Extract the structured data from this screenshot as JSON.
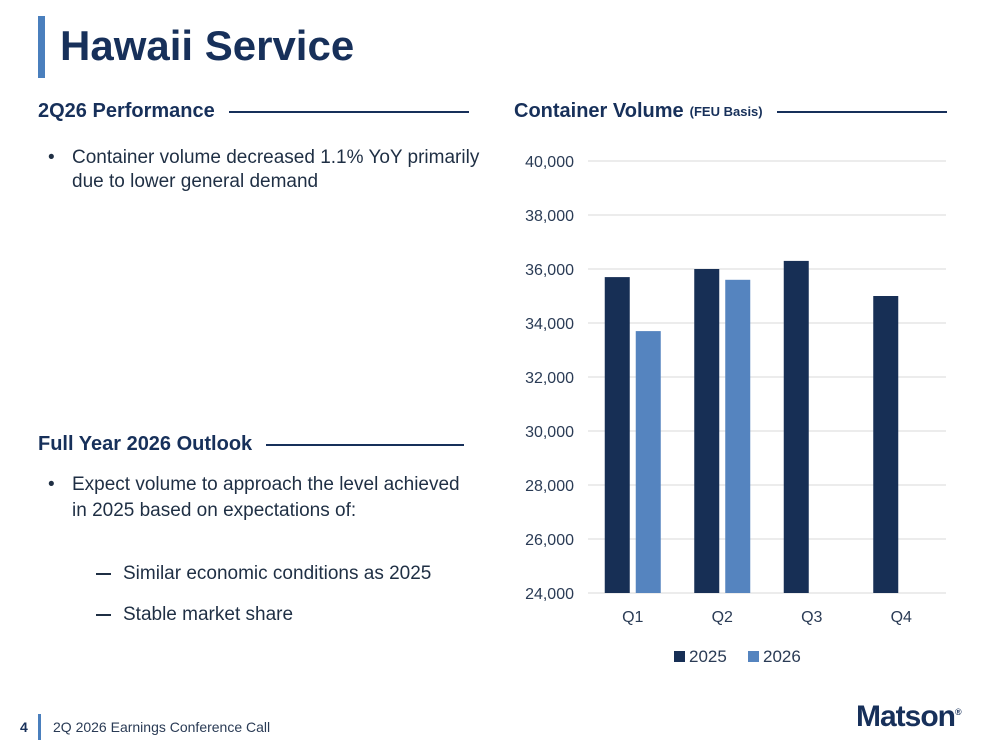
{
  "slide": {
    "title": "Hawaii Service",
    "page_number": "4",
    "footer": "2Q 2026 Earnings Conference Call",
    "logo": "Matson",
    "logo_mark": "®"
  },
  "performance": {
    "heading": "2Q26 Performance",
    "bullets": [
      "Container volume decreased 1.1% YoY primarily due to lower general demand"
    ]
  },
  "outlook": {
    "heading": "Full Year 2026 Outlook",
    "bullets": [
      "Expect volume to approach the level achieved in 2025 based on expectations of:"
    ],
    "sub_items": [
      "Similar economic conditions as 2025",
      "Stable market share"
    ]
  },
  "chart_heading": {
    "title": "Container Volume",
    "subtitle": "(FEU Basis)"
  },
  "colors": {
    "series_2025": "#172f55",
    "series_2026": "#5584bf",
    "grid": "#d9d9d9"
  },
  "chart_data": {
    "type": "bar",
    "title": "Container Volume (FEU Basis)",
    "categories": [
      "Q1",
      "Q2",
      "Q3",
      "Q4"
    ],
    "series": [
      {
        "name": "2025",
        "values": [
          35700,
          36000,
          36300,
          35000
        ]
      },
      {
        "name": "2026",
        "values": [
          33700,
          35600,
          null,
          null
        ]
      }
    ],
    "ylim": [
      24000,
      40000
    ],
    "yticks": [
      24000,
      26000,
      28000,
      30000,
      32000,
      34000,
      36000,
      38000,
      40000
    ],
    "grid": true,
    "legend": "bottom"
  }
}
